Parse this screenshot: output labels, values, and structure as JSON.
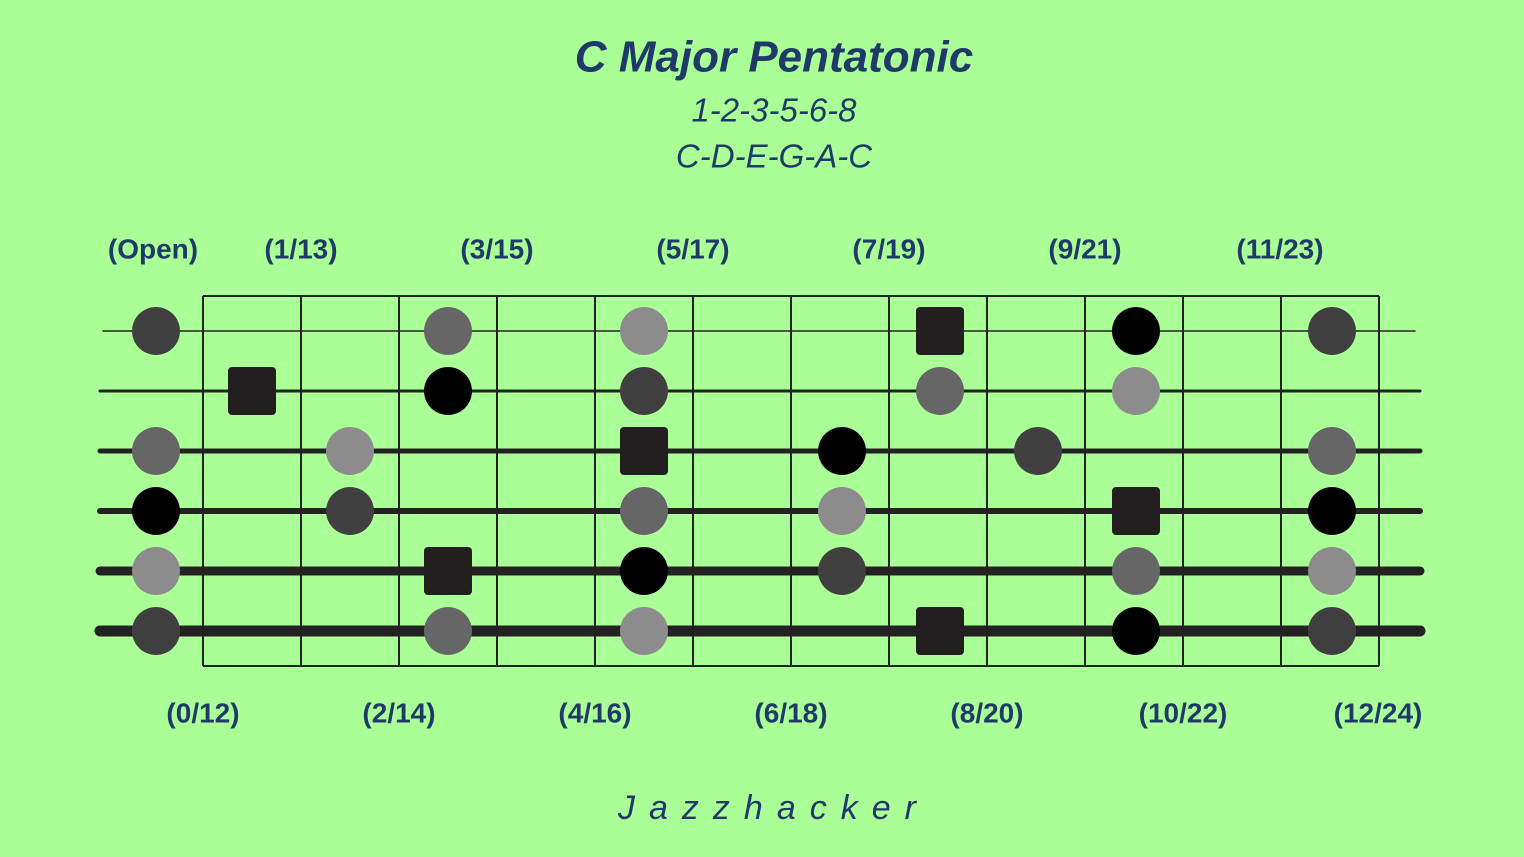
{
  "header": {
    "title": "C Major Pentatonic",
    "formula": "1-2-3-5-6-8",
    "notes": "C-D-E-G-A-C"
  },
  "fret_labels_top": [
    "(Open)",
    "(1/13)",
    "(3/15)",
    "(5/17)",
    "(7/19)",
    "(9/21)",
    "(11/23)"
  ],
  "fret_labels_bottom": [
    "(0/12)",
    "(2/14)",
    "(4/16)",
    "(6/18)",
    "(8/20)",
    "(10/22)",
    "(12/24)"
  ],
  "footer": "Jazzhacker"
}
